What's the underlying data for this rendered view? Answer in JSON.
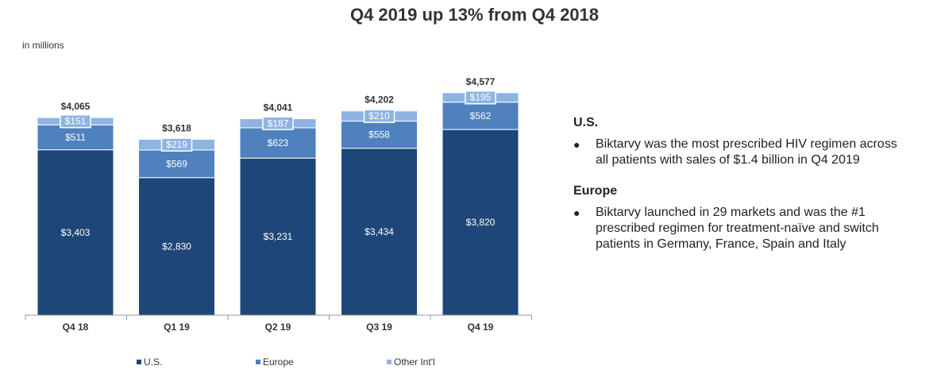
{
  "title": "Q4 2019 up 13% from Q4 2018",
  "unit_label": "in millions",
  "colors": {
    "us": "#1f4678",
    "europe": "#4e81bd",
    "other": "#8eb4e3"
  },
  "chart_data": {
    "type": "bar",
    "stacked": true,
    "categories": [
      "Q4 18",
      "Q1 19",
      "Q2 19",
      "Q3 19",
      "Q4 19"
    ],
    "series": [
      {
        "name": "U.S.",
        "values": [
          3403,
          2830,
          3231,
          3434,
          3820
        ],
        "labels": [
          "$3,403",
          "$2,830",
          "$3,231",
          "$3,434",
          "$3,820"
        ]
      },
      {
        "name": "Europe",
        "values": [
          511,
          569,
          623,
          558,
          562
        ],
        "labels": [
          "$511",
          "$569",
          "$623",
          "$558",
          "$562"
        ]
      },
      {
        "name": "Other Int'l",
        "values": [
          151,
          219,
          187,
          210,
          195
        ],
        "labels": [
          "$151",
          "$219",
          "$187",
          "$210",
          "$195"
        ]
      }
    ],
    "totals": [
      4065,
      3618,
      4041,
      4202,
      4577
    ],
    "total_labels": [
      "$4,065",
      "$3,618",
      "$4,041",
      "$4,202",
      "$4,577"
    ],
    "ylim": [
      0,
      4900
    ],
    "grid": false,
    "legend_position": "bottom"
  },
  "legend": {
    "us": "U.S.",
    "europe": "Europe",
    "other": "Other Int'l"
  },
  "notes": {
    "us_heading": "U.S.",
    "us_bullet": "Biktarvy was the most prescribed HIV regimen across all patients with sales of $1.4 billion in Q4 2019",
    "europe_heading": "Europe",
    "europe_bullet": "Biktarvy launched in 29 markets and was the #1 prescribed regimen for treatment-naïve and switch patients in Germany, France, Spain and Italy",
    "bullet_char": "●"
  }
}
